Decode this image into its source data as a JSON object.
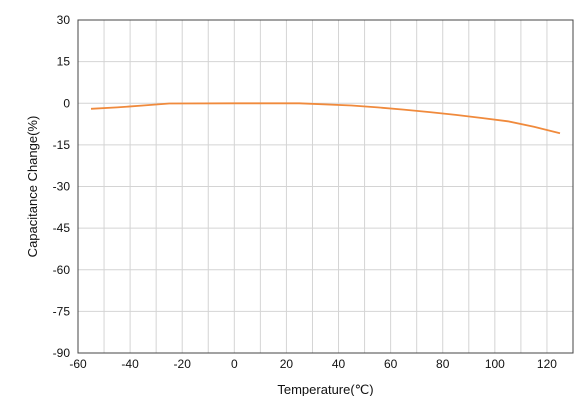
{
  "chart_data": {
    "type": "line",
    "xlabel": "Temperature(℃)",
    "ylabel": "Capacitance Change(%)",
    "xlim": [
      -60,
      130
    ],
    "ylim": [
      -90,
      30
    ],
    "x_ticks": [
      -60,
      -40,
      -20,
      0,
      20,
      40,
      60,
      80,
      100,
      120
    ],
    "y_ticks": [
      30,
      15,
      0,
      -15,
      -30,
      -45,
      -60,
      -75,
      -90
    ],
    "grid": true,
    "series": [
      {
        "color": "#f08a3c",
        "x": [
          -55,
          -45,
          -35,
          -25,
          0,
          25,
          45,
          55,
          65,
          75,
          85,
          95,
          105,
          115,
          125
        ],
        "y": [
          -2,
          -1.5,
          -0.8,
          -0.1,
          0,
          0,
          -0.8,
          -1.5,
          -2.3,
          -3.2,
          -4.2,
          -5.3,
          -6.5,
          -8.5,
          -10.8
        ]
      }
    ],
    "colors": {
      "grid": "#d4d4d4",
      "axis": "#444444",
      "series": "#f08a3c"
    }
  }
}
